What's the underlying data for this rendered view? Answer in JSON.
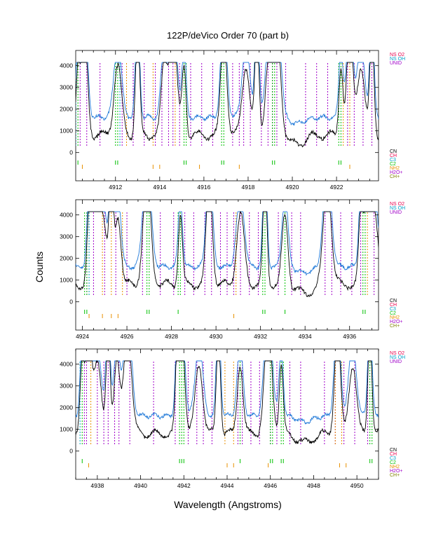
{
  "chart_data": {
    "type": "line",
    "title": "122P/deVico Order 70 (part b)",
    "xlabel": "Wavelength (Angstroms)",
    "ylabel": "Counts",
    "legend_top": [
      {
        "label": "NS O2",
        "color": "#e8004c"
      },
      {
        "label": "NS OH",
        "color": "#00a0c8"
      },
      {
        "label": "UNID",
        "color": "#a000c8"
      }
    ],
    "legend_species": [
      {
        "label": "CN",
        "color": "#000000"
      },
      {
        "label": "CH",
        "color": "#e8004c"
      },
      {
        "label": "C3",
        "color": "#00a0c8"
      },
      {
        "label": "C2",
        "color": "#00c000"
      },
      {
        "label": "NH2",
        "color": "#e89000"
      },
      {
        "label": "H2O+",
        "color": "#a000c8"
      },
      {
        "label": "CH+",
        "color": "#808000"
      }
    ],
    "colors": {
      "observed": "#000000",
      "model": "#1e78d8"
    },
    "panels": [
      {
        "xlim": [
          4910.2,
          4923.9
        ],
        "ylim": [
          -1300,
          4700
        ],
        "yticks": [
          0,
          1000,
          2000,
          3000,
          4000
        ],
        "xticks": [
          4912,
          4914,
          4916,
          4918,
          4920,
          4922
        ],
        "tick_labels_x": [
          "4912",
          "4914",
          "4916",
          "4918",
          "4920",
          "4922"
        ],
        "tick_labels_y": [
          "0",
          "1000",
          "2000",
          "3000",
          "4000"
        ],
        "peaks": [
          4910.3,
          4910.6,
          4912.1,
          4913.0,
          4914.2,
          4914.6,
          4915.1,
          4916.9,
          4917.9,
          4918.4,
          4918.9,
          4919.3,
          4922.2,
          4922.6,
          4923.1,
          4923.6
        ],
        "gap_mid": 4920.2,
        "unid_lines": [
          4910.4,
          4910.7,
          4911.3,
          4912.3,
          4912.8,
          4913.3,
          4913.8,
          4914.1,
          4914.4,
          4914.6,
          4914.9,
          4915.4,
          4915.9,
          4916.4,
          4917.3,
          4917.6,
          4917.8,
          4918.1,
          4918.6,
          4918.9,
          4919.1,
          4919.3,
          4919.7,
          4920.6,
          4921.1,
          4921.6,
          4922.5,
          4922.8,
          4923.2,
          4923.6
        ],
        "nh2_lines": [
          4912.5,
          4913.7,
          4914.7,
          4922.3,
          4922.6
        ],
        "c2_lines": [
          4910.3,
          4912.0,
          4912.1,
          4915.1,
          4915.2,
          4916.8,
          4916.9,
          4919.1,
          4919.2,
          4922.1,
          4922.2
        ],
        "c3_lines": [
          4910.2,
          4912.2
        ],
        "marks_c2": [
          4910.3,
          4912.0,
          4912.1,
          4915.1,
          4915.2,
          4916.8,
          4916.9,
          4919.1,
          4919.2,
          4922.1,
          4922.2
        ],
        "marks_nh2": [
          4910.5,
          4913.7,
          4914.0,
          4915.8,
          4917.6,
          4922.6
        ]
      },
      {
        "xlim": [
          4923.7,
          4937.3
        ],
        "ylim": [
          -1300,
          4700
        ],
        "yticks": [
          0,
          1000,
          2000,
          3000,
          4000
        ],
        "xticks": [
          4924,
          4926,
          4928,
          4930,
          4932,
          4934,
          4936
        ],
        "tick_labels_x": [
          "4924",
          "4926",
          "4928",
          "4930",
          "4932",
          "4934",
          "4936"
        ],
        "tick_labels_y": [
          "0",
          "1000",
          "2000",
          "3000",
          "4000"
        ],
        "peaks": [
          4924.3,
          4924.6,
          4924.9,
          4925.3,
          4925.6,
          4926.9,
          4928.4,
          4929.7,
          4931.1,
          4932.2,
          4933.1,
          4935.0,
          4936.5,
          4936.8,
          4937.1
        ],
        "gap_mid": 4934.0,
        "unid_lines": [
          4924.2,
          4924.5,
          4925.0,
          4925.5,
          4926.0,
          4926.7,
          4927.5,
          4928.1,
          4928.6,
          4929.0,
          4929.5,
          4929.8,
          4930.2,
          4930.5,
          4930.8,
          4931.1,
          4931.5,
          4931.9,
          4932.2,
          4932.8,
          4933.4,
          4933.8,
          4934.9,
          4935.2,
          4935.6,
          4936.1,
          4936.5,
          4937.1
        ],
        "nh2_lines": [
          4924.3,
          4924.9,
          4925.3,
          4925.8,
          4930.9,
          4936.8
        ],
        "c2_lines": [
          4924.1,
          4924.2,
          4926.9,
          4927.0,
          4928.3,
          4928.4,
          4932.1,
          4932.2,
          4933.1,
          4936.6,
          4936.7
        ],
        "c3_lines": [
          4924.3
        ],
        "marks_c2": [
          4924.1,
          4924.2,
          4926.9,
          4927.0,
          4928.3,
          4932.1,
          4932.2,
          4933.1,
          4936.6,
          4936.7
        ],
        "marks_nh2": [
          4924.3,
          4924.9,
          4925.3,
          4925.6,
          4930.8
        ]
      },
      {
        "xlim": [
          4937.0,
          4951.0
        ],
        "ylim": [
          -1300,
          4700
        ],
        "yticks": [
          0,
          1000,
          2000,
          3000,
          4000
        ],
        "xticks": [
          4938,
          4940,
          4942,
          4944,
          4946,
          4948,
          4950
        ],
        "tick_labels_x": [
          "4938",
          "4940",
          "4942",
          "4944",
          "4946",
          "4948",
          "4950"
        ],
        "tick_labels_y": [
          "0",
          "1000",
          "2000",
          "3000",
          "4000"
        ],
        "peaks": [
          4937.3,
          4937.6,
          4938.0,
          4938.5,
          4938.9,
          4939.4,
          4941.7,
          4941.9,
          4942.7,
          4943.6,
          4944.6,
          4945.9,
          4946.5,
          4949.1,
          4949.8,
          4950.6
        ],
        "gap_mid": 4947.6,
        "unid_lines": [
          4937.4,
          4937.5,
          4938.0,
          4938.3,
          4938.5,
          4938.8,
          4939.0,
          4939.5,
          4940.6,
          4941.6,
          4942.2,
          4942.6,
          4942.9,
          4943.3,
          4944.5,
          4944.7,
          4945.1,
          4945.5,
          4946.0,
          4946.3,
          4946.9,
          4947.4,
          4948.5,
          4949.0,
          4949.4,
          4949.9,
          4950.5
        ],
        "nh2_lines": [
          4937.7,
          4943.9,
          4944.3,
          4949.0,
          4949.3
        ],
        "c2_lines": [
          4937.3,
          4941.8,
          4941.9,
          4942.0,
          4944.6,
          4946.0,
          4946.1,
          4946.5,
          4946.6,
          4950.6,
          4950.7
        ],
        "c3_lines": [
          4937.2
        ],
        "marks_c2": [
          4937.3,
          4941.8,
          4941.9,
          4942.0,
          4944.6,
          4946.0,
          4946.1,
          4946.5,
          4946.6,
          4950.6,
          4950.7
        ],
        "marks_nh2": [
          4937.6,
          4944.0,
          4944.3,
          4945.9,
          4949.2,
          4949.5
        ]
      }
    ]
  }
}
